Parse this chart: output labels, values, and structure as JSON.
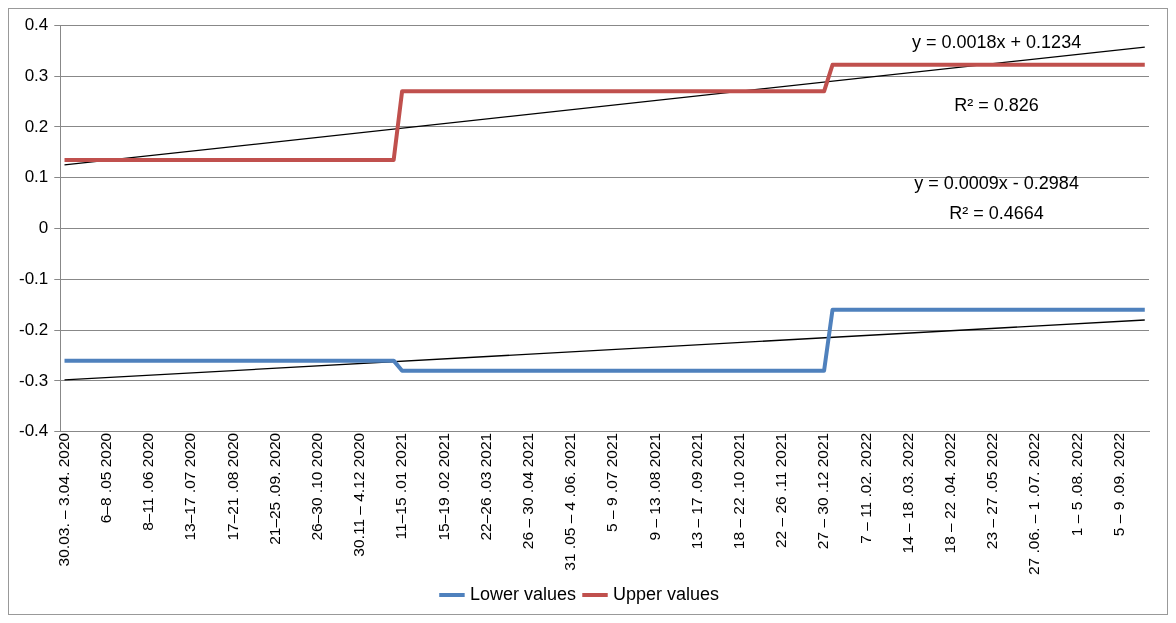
{
  "chart_data": {
    "type": "line",
    "categories": [
      "30.03. – 3.04. 2020",
      null,
      null,
      null,
      null,
      "6–8 .05 2020",
      null,
      null,
      null,
      null,
      "8–11 .06 2020",
      null,
      null,
      null,
      null,
      "13–17 .07 2020",
      null,
      null,
      null,
      null,
      "17–21 .08 2020",
      null,
      null,
      null,
      null,
      "21–25 .09. 2020",
      null,
      null,
      null,
      null,
      "26–30 .10 2020",
      null,
      null,
      null,
      null,
      "30.11 – 4.12 2020",
      null,
      null,
      null,
      null,
      "11–15 .01 2021",
      null,
      null,
      null,
      null,
      "15–19 .02 2021",
      null,
      null,
      null,
      null,
      "22–26 .03 2021",
      null,
      null,
      null,
      null,
      "26 – 30 .04 2021",
      null,
      null,
      null,
      null,
      "31 .05 – 4 .06. 2021",
      null,
      null,
      null,
      null,
      "5 – 9 .07 2021",
      null,
      null,
      null,
      null,
      "9 – 13 .08 2021",
      null,
      null,
      null,
      null,
      "13 – 17 .09 2021",
      null,
      null,
      null,
      null,
      "18 – 22 .10 2021",
      null,
      null,
      null,
      null,
      "22 – 26 .11 2021",
      null,
      null,
      null,
      null,
      "27 – 30 .12 2021",
      null,
      null,
      null,
      null,
      "7 – 11 .02. 2022",
      null,
      null,
      null,
      null,
      "14 – 18 .03. 2022",
      null,
      null,
      null,
      null,
      "18 – 22 .04. 2022",
      null,
      null,
      null,
      null,
      "23 – 27 .05 2022",
      null,
      null,
      null,
      null,
      "27 .06. – 1 .07. 2022",
      null,
      null,
      null,
      null,
      "1 – 5 .08. 2022",
      null,
      null,
      null,
      null,
      "5 – 9 .09. 2022",
      null,
      null,
      null
    ],
    "series": [
      {
        "name": "Lower values",
        "color": "#4f81bd",
        "values": [
          -0.26,
          -0.26,
          -0.26,
          -0.26,
          -0.26,
          -0.26,
          -0.26,
          -0.26,
          -0.26,
          -0.26,
          -0.26,
          -0.26,
          -0.26,
          -0.26,
          -0.26,
          -0.26,
          -0.26,
          -0.26,
          -0.26,
          -0.26,
          -0.26,
          -0.26,
          -0.26,
          -0.26,
          -0.26,
          -0.26,
          -0.26,
          -0.26,
          -0.26,
          -0.26,
          -0.26,
          -0.26,
          -0.26,
          -0.26,
          -0.26,
          -0.26,
          -0.26,
          -0.26,
          -0.26,
          -0.26,
          -0.28,
          -0.28,
          -0.28,
          -0.28,
          -0.28,
          -0.28,
          -0.28,
          -0.28,
          -0.28,
          -0.28,
          -0.28,
          -0.28,
          -0.28,
          -0.28,
          -0.28,
          -0.28,
          -0.28,
          -0.28,
          -0.28,
          -0.28,
          -0.28,
          -0.28,
          -0.28,
          -0.28,
          -0.28,
          -0.28,
          -0.28,
          -0.28,
          -0.28,
          -0.28,
          -0.28,
          -0.28,
          -0.28,
          -0.28,
          -0.28,
          -0.28,
          -0.28,
          -0.28,
          -0.28,
          -0.28,
          -0.28,
          -0.28,
          -0.28,
          -0.28,
          -0.28,
          -0.28,
          -0.28,
          -0.28,
          -0.28,
          -0.28,
          -0.28,
          -0.16,
          -0.16,
          -0.16,
          -0.16,
          -0.16,
          -0.16,
          -0.16,
          -0.16,
          -0.16,
          -0.16,
          -0.16,
          -0.16,
          -0.16,
          -0.16,
          -0.16,
          -0.16,
          -0.16,
          -0.16,
          -0.16,
          -0.16,
          -0.16,
          -0.16,
          -0.16,
          -0.16,
          -0.16,
          -0.16,
          -0.16,
          -0.16,
          -0.16,
          -0.16,
          -0.16,
          -0.16,
          -0.16,
          -0.16,
          -0.16,
          -0.16,
          -0.16,
          -0.16
        ]
      },
      {
        "name": "Upper values",
        "color": "#c0504d",
        "values": [
          0.135,
          0.135,
          0.135,
          0.135,
          0.135,
          0.135,
          0.135,
          0.135,
          0.135,
          0.135,
          0.135,
          0.135,
          0.135,
          0.135,
          0.135,
          0.135,
          0.135,
          0.135,
          0.135,
          0.135,
          0.135,
          0.135,
          0.135,
          0.135,
          0.135,
          0.135,
          0.135,
          0.135,
          0.135,
          0.135,
          0.135,
          0.135,
          0.135,
          0.135,
          0.135,
          0.135,
          0.135,
          0.135,
          0.135,
          0.135,
          0.27,
          0.27,
          0.27,
          0.27,
          0.27,
          0.27,
          0.27,
          0.27,
          0.27,
          0.27,
          0.27,
          0.27,
          0.27,
          0.27,
          0.27,
          0.27,
          0.27,
          0.27,
          0.27,
          0.27,
          0.27,
          0.27,
          0.27,
          0.27,
          0.27,
          0.27,
          0.27,
          0.27,
          0.27,
          0.27,
          0.27,
          0.27,
          0.27,
          0.27,
          0.27,
          0.27,
          0.27,
          0.27,
          0.27,
          0.27,
          0.27,
          0.27,
          0.27,
          0.27,
          0.27,
          0.27,
          0.27,
          0.27,
          0.27,
          0.27,
          0.27,
          0.322,
          0.322,
          0.322,
          0.322,
          0.322,
          0.322,
          0.322,
          0.322,
          0.322,
          0.322,
          0.322,
          0.322,
          0.322,
          0.322,
          0.322,
          0.322,
          0.322,
          0.322,
          0.322,
          0.322,
          0.322,
          0.322,
          0.322,
          0.322,
          0.322,
          0.322,
          0.322,
          0.322,
          0.322,
          0.322,
          0.322,
          0.322,
          0.322,
          0.322,
          0.322,
          0.322,
          0.322,
          0.322
        ]
      },
      {
        "type": "line",
        "color": "#000000",
        "values": [
          -0.298,
          null,
          null,
          null,
          null,
          null,
          null,
          null,
          null,
          null,
          null,
          null,
          null,
          null,
          null,
          null,
          null,
          null,
          null,
          null,
          null,
          null,
          null,
          null,
          null,
          null,
          null,
          null,
          null,
          null,
          null,
          null,
          null,
          null,
          null,
          null,
          null,
          null,
          null,
          null,
          null,
          null,
          null,
          null,
          null,
          null,
          null,
          null,
          null,
          null,
          null,
          null,
          null,
          null,
          null,
          null,
          null,
          null,
          null,
          null,
          null,
          null,
          null,
          null,
          null,
          null,
          null,
          null,
          null,
          null,
          null,
          null,
          null,
          null,
          null,
          null,
          null,
          null,
          null,
          null,
          null,
          null,
          null,
          null,
          null,
          null,
          null,
          null,
          null,
          null,
          null,
          null,
          null,
          null,
          null,
          null,
          null,
          null,
          null,
          null,
          null,
          null,
          null,
          null,
          null,
          null,
          null,
          null,
          null,
          null,
          null,
          null,
          null,
          null,
          null,
          null,
          null,
          null,
          null,
          null,
          null,
          null,
          null,
          null,
          null,
          null,
          null,
          null,
          -0.18
        ]
      },
      {
        "type": "line",
        "color": "#000000",
        "values": [
          0.125,
          null,
          null,
          null,
          null,
          null,
          null,
          null,
          null,
          null,
          null,
          null,
          null,
          null,
          null,
          null,
          null,
          null,
          null,
          null,
          null,
          null,
          null,
          null,
          null,
          null,
          null,
          null,
          null,
          null,
          null,
          null,
          null,
          null,
          null,
          null,
          null,
          null,
          null,
          null,
          null,
          null,
          null,
          null,
          null,
          null,
          null,
          null,
          null,
          null,
          null,
          null,
          null,
          null,
          null,
          null,
          null,
          null,
          null,
          null,
          null,
          null,
          null,
          null,
          null,
          null,
          null,
          null,
          null,
          null,
          null,
          null,
          null,
          null,
          null,
          null,
          null,
          null,
          null,
          null,
          null,
          null,
          null,
          null,
          null,
          null,
          null,
          null,
          null,
          null,
          null,
          null,
          null,
          null,
          null,
          null,
          null,
          null,
          null,
          null,
          null,
          null,
          null,
          null,
          null,
          null,
          null,
          null,
          null,
          null,
          null,
          null,
          null,
          null,
          null,
          null,
          null,
          null,
          null,
          null,
          null,
          null,
          null,
          null,
          null,
          null,
          null,
          null,
          0.357
        ]
      }
    ],
    "ylim": [
      -0.4,
      0.4
    ],
    "yticks": [
      -0.4,
      -0.3,
      -0.2,
      -0.1,
      0,
      0.1,
      0.2,
      0.3,
      0.4
    ],
    "grid": "y",
    "legend": "bottom",
    "marker": "none",
    "annotations": [
      "y = 0.0018x + 0.1234",
      "R² = 0.826",
      "y = 0.0009x - 0.2984",
      "R² = 0.4664"
    ]
  }
}
